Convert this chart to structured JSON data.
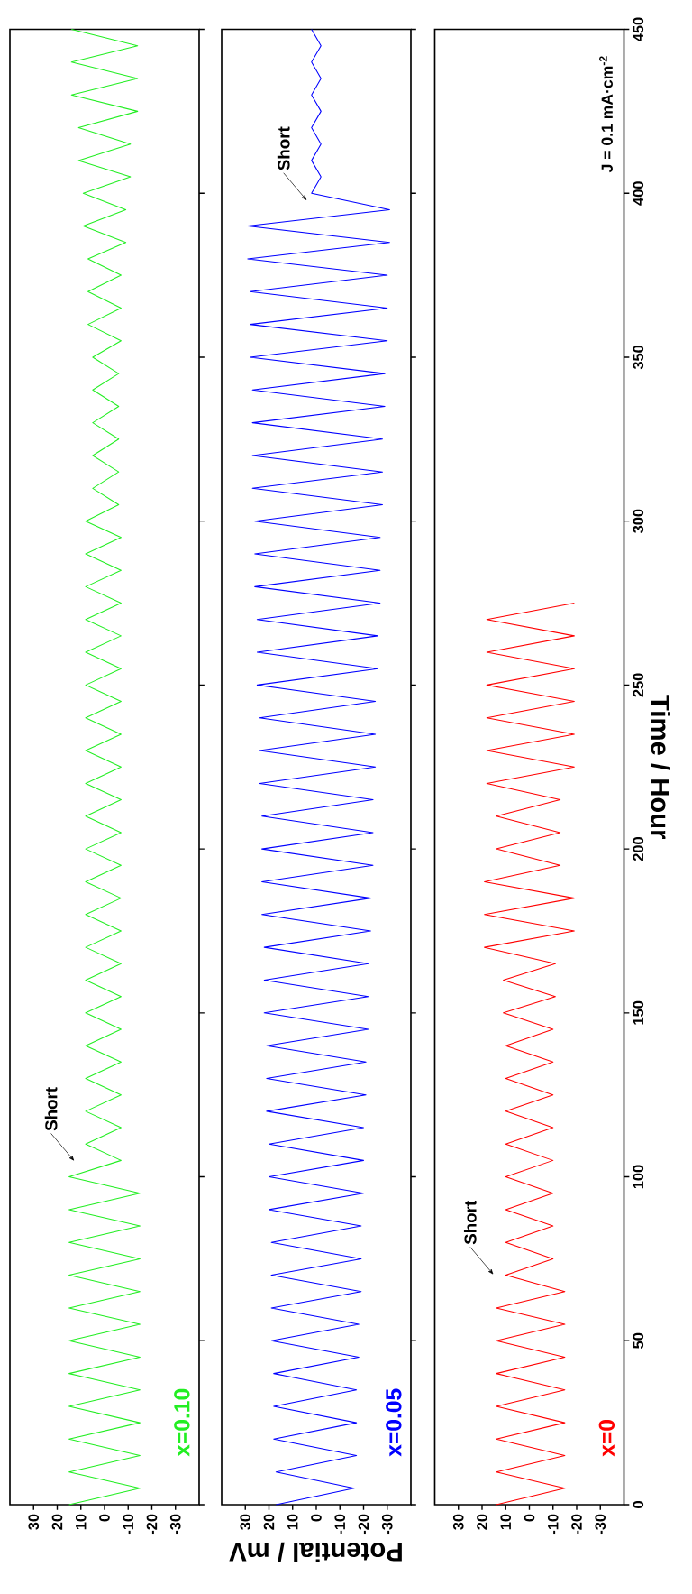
{
  "chart_data": [
    {
      "type": "line",
      "series": [
        {
          "name": "x=0.10",
          "color": "#22ee22",
          "x": [
            15,
            -15,
            15,
            -15,
            15,
            -15,
            15,
            -15,
            15,
            -15,
            15,
            -15,
            15,
            -15,
            15,
            -15,
            15,
            -15,
            15,
            -15,
            15,
            -7,
            8,
            -7,
            8,
            -7,
            8,
            -7,
            8,
            -7,
            8,
            -7,
            8,
            -7,
            8,
            -7,
            8,
            -7,
            8,
            -7,
            8,
            -7,
            8,
            -7,
            8,
            -7,
            8,
            -7,
            8,
            -7,
            8,
            -7,
            8,
            -7,
            8,
            -7,
            8,
            -7,
            8,
            -7,
            8,
            -6,
            5,
            -6,
            5,
            -6,
            5,
            -6,
            5,
            -6,
            5,
            -7,
            7,
            -7,
            7,
            -7,
            7,
            -9,
            9,
            -9,
            9,
            -11,
            11,
            -11,
            11,
            -14,
            14,
            -14,
            14,
            -14,
            14
          ],
          "values": [
            0,
            5,
            10,
            15,
            20,
            25,
            30,
            35,
            40,
            45,
            50,
            55,
            60,
            65,
            70,
            75,
            80,
            85,
            90,
            95,
            100,
            105,
            110,
            115,
            120,
            125,
            130,
            135,
            140,
            145,
            150,
            155,
            160,
            165,
            170,
            175,
            180,
            185,
            190,
            195,
            200,
            205,
            210,
            215,
            220,
            225,
            230,
            235,
            240,
            245,
            250,
            255,
            260,
            265,
            270,
            275,
            280,
            285,
            290,
            295,
            300,
            305,
            310,
            315,
            320,
            325,
            330,
            335,
            340,
            345,
            350,
            355,
            360,
            365,
            370,
            375,
            380,
            385,
            390,
            395,
            400,
            405,
            410,
            415,
            420,
            425,
            430,
            435,
            440,
            445,
            450
          ]
        }
      ],
      "xlim": [
        40,
        -40
      ],
      "xticks": [
        30,
        20,
        10,
        0,
        -10,
        -20,
        -30
      ],
      "ylim": [
        0,
        450
      ],
      "yticks": [
        0,
        50,
        100,
        150,
        200,
        250,
        300,
        350,
        400,
        450
      ],
      "tick_labels": "x",
      "marker": "none",
      "annotations": [
        "Short"
      ]
    },
    {
      "type": "line",
      "series": [
        {
          "name": "x=0.05",
          "color": "#0000ff",
          "x": [
            17,
            -16,
            17,
            -17,
            18,
            -17,
            18,
            -17,
            18,
            -18,
            19,
            -18,
            19,
            -19,
            19,
            -19,
            19,
            -19,
            20,
            -20,
            20,
            -20,
            20,
            -20,
            21,
            -21,
            21,
            -21,
            21,
            -22,
            22,
            -22,
            22,
            -22,
            22,
            -23,
            23,
            -23,
            23,
            -24,
            23,
            -24,
            23,
            -24,
            24,
            -25,
            24,
            -25,
            24,
            -25,
            25,
            -26,
            25,
            -26,
            25,
            -27,
            26,
            -27,
            26,
            -27,
            26,
            -28,
            27,
            -28,
            27,
            -28,
            27,
            -29,
            27,
            -29,
            28,
            -30,
            28,
            -30,
            28,
            -30,
            29,
            -31,
            29,
            -31,
            2,
            -2,
            2,
            -2,
            2,
            -2,
            2,
            -2,
            2,
            -2,
            2
          ],
          "values": [
            0,
            5,
            10,
            15,
            20,
            25,
            30,
            35,
            40,
            45,
            50,
            55,
            60,
            65,
            70,
            75,
            80,
            85,
            90,
            95,
            100,
            105,
            110,
            115,
            120,
            125,
            130,
            135,
            140,
            145,
            150,
            155,
            160,
            165,
            170,
            175,
            180,
            185,
            190,
            195,
            200,
            205,
            210,
            215,
            220,
            225,
            230,
            235,
            240,
            245,
            250,
            255,
            260,
            265,
            270,
            275,
            280,
            285,
            290,
            295,
            300,
            305,
            310,
            315,
            320,
            325,
            330,
            335,
            340,
            345,
            350,
            355,
            360,
            365,
            370,
            375,
            380,
            385,
            390,
            395,
            400,
            405,
            410,
            415,
            420,
            425,
            430,
            435,
            440,
            445,
            450
          ]
        }
      ],
      "xlim": [
        40,
        -40
      ],
      "xticks": [
        30,
        20,
        10,
        0,
        -10,
        -20,
        -30
      ],
      "ylim": [
        0,
        450
      ],
      "yticks": [
        0,
        50,
        100,
        150,
        200,
        250,
        300,
        350,
        400,
        450
      ],
      "xlabel": "Potential / mV",
      "tick_labels": "x",
      "marker": "none",
      "annotations": [
        "Short"
      ]
    },
    {
      "type": "line",
      "series": [
        {
          "name": "x=0",
          "color": "#ff0000",
          "x": [
            14,
            -15,
            14,
            -15,
            14,
            -15,
            14,
            -15,
            14,
            -15,
            14,
            -15,
            14,
            -15,
            10,
            -10,
            10,
            -10,
            10,
            -10,
            10,
            -10,
            10,
            -10,
            10,
            -10,
            10,
            -10,
            10,
            -10,
            11,
            -11,
            11,
            -11,
            19,
            -19,
            19,
            -19,
            19,
            -13,
            14,
            -13,
            14,
            -13,
            18,
            -19,
            18,
            -19,
            18,
            -19,
            18,
            -19,
            18,
            -19,
            18,
            -19
          ],
          "values": [
            0,
            5,
            10,
            15,
            20,
            25,
            30,
            35,
            40,
            45,
            50,
            55,
            60,
            65,
            70,
            75,
            80,
            85,
            90,
            95,
            100,
            105,
            110,
            115,
            120,
            125,
            130,
            135,
            140,
            145,
            150,
            155,
            160,
            165,
            170,
            175,
            180,
            185,
            190,
            195,
            200,
            205,
            210,
            215,
            220,
            225,
            230,
            235,
            240,
            245,
            250,
            255,
            260,
            265,
            270,
            275
          ]
        }
      ],
      "xlim": [
        40,
        -40
      ],
      "xticks": [
        30,
        20,
        10,
        0,
        -10,
        -20,
        -30
      ],
      "ylim": [
        0,
        450
      ],
      "yticks": [
        0,
        50,
        100,
        150,
        200,
        250,
        300,
        350,
        400,
        450
      ],
      "ylabel": "Time / Hour",
      "marker": "none",
      "annotations": [
        "Short",
        "J = 0.1 mA·cm$^{-2}$"
      ]
    }
  ]
}
